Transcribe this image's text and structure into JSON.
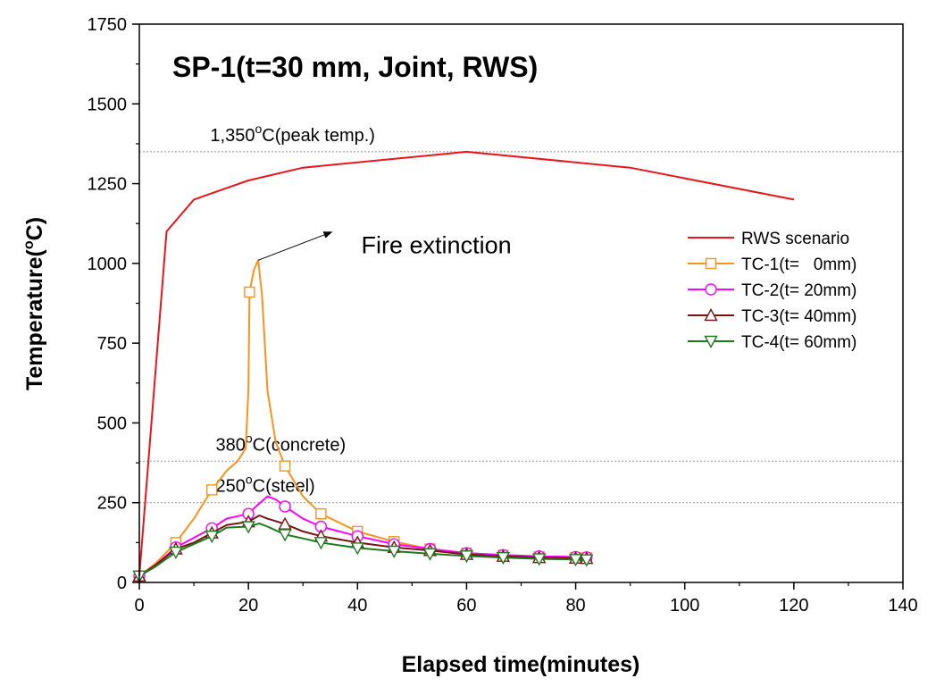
{
  "chart_data": {
    "type": "line",
    "title": "SP-1(t=30 mm, Joint, RWS)",
    "xlabel": "Elapsed time(minutes)",
    "ylabel_main": "Temperature(",
    "ylabel_sup": "o",
    "ylabel_end": "C)",
    "xlim": [
      0,
      140
    ],
    "ylim": [
      0,
      1750
    ],
    "xticks": [
      0,
      20,
      40,
      60,
      80,
      100,
      120,
      140
    ],
    "yticks": [
      0,
      250,
      500,
      750,
      1000,
      1250,
      1500,
      1750
    ],
    "grid": false,
    "legend_position": "right",
    "reference_lines": [
      {
        "y": 1350,
        "label_pre": "1,350",
        "label_sup": "o",
        "label_post": "C(peak temp.)",
        "label_x": 13
      },
      {
        "y": 380,
        "label_pre": "380",
        "label_sup": "o",
        "label_post": "C(concrete)",
        "label_x": 14
      },
      {
        "y": 250,
        "label_pre": "250",
        "label_sup": "o",
        "label_post": "C(steel)",
        "label_x": 14
      }
    ],
    "annotations": [
      {
        "text": "Fire extinction",
        "x": 33,
        "y": 1110,
        "arrow_from": [
          32,
          1090
        ],
        "arrow_to": [
          21.8,
          1010
        ]
      }
    ],
    "series": [
      {
        "name": "RWS scenario",
        "color": "#e8161b",
        "marker": "none",
        "points": [
          [
            0,
            20
          ],
          [
            5,
            1100
          ],
          [
            10,
            1200
          ],
          [
            20,
            1260
          ],
          [
            30,
            1300
          ],
          [
            60,
            1350
          ],
          [
            90,
            1300
          ],
          [
            120,
            1200
          ]
        ]
      },
      {
        "name": "TC-1(t=   0mm)",
        "color": "#f7941d",
        "marker": "square",
        "points": [
          [
            0,
            20
          ],
          [
            3,
            60
          ],
          [
            6.7,
            125
          ],
          [
            10,
            200
          ],
          [
            13.3,
            290
          ],
          [
            16,
            350
          ],
          [
            18,
            380
          ],
          [
            19.5,
            420
          ],
          [
            20,
            600
          ],
          [
            20.2,
            910
          ],
          [
            21,
            980
          ],
          [
            21.8,
            1010
          ],
          [
            22.5,
            900
          ],
          [
            23.5,
            600
          ],
          [
            25,
            440
          ],
          [
            26.7,
            365
          ],
          [
            30,
            270
          ],
          [
            33.3,
            215
          ],
          [
            40,
            160
          ],
          [
            46.7,
            128
          ],
          [
            53.3,
            105
          ],
          [
            60,
            92
          ],
          [
            66.7,
            85
          ],
          [
            73.3,
            80
          ],
          [
            80,
            78
          ],
          [
            82,
            77
          ]
        ],
        "marker_points": [
          [
            0,
            20
          ],
          [
            6.7,
            125
          ],
          [
            13.3,
            290
          ],
          [
            20.2,
            910
          ],
          [
            26.7,
            365
          ],
          [
            33.3,
            215
          ],
          [
            40,
            160
          ],
          [
            46.7,
            128
          ],
          [
            53.3,
            105
          ],
          [
            60,
            92
          ],
          [
            66.7,
            85
          ],
          [
            73.3,
            80
          ],
          [
            80,
            78
          ],
          [
            82,
            77
          ]
        ]
      },
      {
        "name": "TC-2(t= 20mm)",
        "color": "#ff00ff",
        "marker": "circle",
        "points": [
          [
            0,
            20
          ],
          [
            3,
            55
          ],
          [
            6.7,
            110
          ],
          [
            10,
            140
          ],
          [
            13.3,
            170
          ],
          [
            16,
            200
          ],
          [
            20,
            215
          ],
          [
            21.5,
            240
          ],
          [
            23.5,
            270
          ],
          [
            25,
            260
          ],
          [
            26.7,
            238
          ],
          [
            30,
            200
          ],
          [
            33.3,
            175
          ],
          [
            40,
            145
          ],
          [
            46.7,
            120
          ],
          [
            53.3,
            105
          ],
          [
            60,
            92
          ],
          [
            66.7,
            86
          ],
          [
            73.3,
            82
          ],
          [
            80,
            80
          ],
          [
            82,
            79
          ]
        ],
        "marker_points": [
          [
            0,
            20
          ],
          [
            6.7,
            110
          ],
          [
            13.3,
            170
          ],
          [
            20,
            215
          ],
          [
            26.7,
            238
          ],
          [
            33.3,
            175
          ],
          [
            40,
            145
          ],
          [
            46.7,
            120
          ],
          [
            53.3,
            105
          ],
          [
            60,
            92
          ],
          [
            66.7,
            86
          ],
          [
            73.3,
            82
          ],
          [
            80,
            80
          ],
          [
            82,
            79
          ]
        ]
      },
      {
        "name": "TC-3(t= 40mm)",
        "color": "#7b1113",
        "marker": "triangle",
        "points": [
          [
            0,
            20
          ],
          [
            3,
            55
          ],
          [
            6.7,
            105
          ],
          [
            10,
            125
          ],
          [
            13.3,
            155
          ],
          [
            16,
            180
          ],
          [
            20,
            190
          ],
          [
            22,
            210
          ],
          [
            23.5,
            200
          ],
          [
            26.7,
            183
          ],
          [
            30,
            160
          ],
          [
            33.3,
            145
          ],
          [
            40,
            125
          ],
          [
            46.7,
            110
          ],
          [
            53.3,
            100
          ],
          [
            60,
            88
          ],
          [
            66.7,
            82
          ],
          [
            73.3,
            78
          ],
          [
            80,
            76
          ],
          [
            82,
            75
          ]
        ],
        "marker_points": [
          [
            0,
            20
          ],
          [
            6.7,
            105
          ],
          [
            13.3,
            155
          ],
          [
            20,
            190
          ],
          [
            26.7,
            183
          ],
          [
            33.3,
            145
          ],
          [
            40,
            125
          ],
          [
            46.7,
            110
          ],
          [
            53.3,
            100
          ],
          [
            60,
            88
          ],
          [
            66.7,
            82
          ],
          [
            73.3,
            78
          ],
          [
            80,
            76
          ],
          [
            82,
            75
          ]
        ]
      },
      {
        "name": "TC-4(t= 60mm)",
        "color": "#1f7a1f",
        "marker": "triangle-down",
        "points": [
          [
            0,
            20
          ],
          [
            3,
            50
          ],
          [
            6.7,
            95
          ],
          [
            10,
            120
          ],
          [
            13.3,
            145
          ],
          [
            16,
            172
          ],
          [
            20,
            175
          ],
          [
            22,
            185
          ],
          [
            23.5,
            175
          ],
          [
            26.7,
            150
          ],
          [
            30,
            138
          ],
          [
            33.3,
            125
          ],
          [
            40,
            108
          ],
          [
            46.7,
            98
          ],
          [
            53.3,
            90
          ],
          [
            60,
            83
          ],
          [
            66.7,
            78
          ],
          [
            73.3,
            74
          ],
          [
            80,
            72
          ],
          [
            82,
            71
          ]
        ],
        "marker_points": [
          [
            0,
            20
          ],
          [
            6.7,
            95
          ],
          [
            13.3,
            145
          ],
          [
            20,
            175
          ],
          [
            26.7,
            150
          ],
          [
            33.3,
            125
          ],
          [
            40,
            108
          ],
          [
            46.7,
            98
          ],
          [
            53.3,
            90
          ],
          [
            60,
            83
          ],
          [
            66.7,
            78
          ],
          [
            73.3,
            74
          ],
          [
            80,
            72
          ],
          [
            82,
            71
          ]
        ]
      }
    ]
  }
}
